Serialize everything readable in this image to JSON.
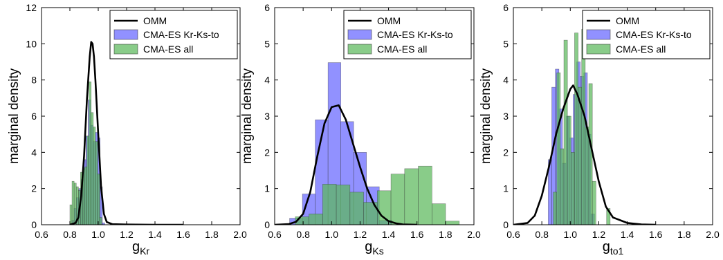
{
  "colors": {
    "omm": "#000000",
    "blue": "#6666ff",
    "green": "#5cb85c",
    "overlap_hint": "#2f7a7a"
  },
  "chart_data": [
    {
      "type": "histogram",
      "xlabel_main": "g",
      "xlabel_sub": "Kr",
      "ylabel": "marginal density",
      "xlim": [
        0.6,
        2.0
      ],
      "ylim": [
        0,
        12
      ],
      "xticks": [
        "0.6",
        "0.8",
        "1.0",
        "1.2",
        "1.4",
        "1.6",
        "1.8",
        "2.0"
      ],
      "yticks": [
        "0",
        "2",
        "4",
        "6",
        "8",
        "10",
        "12"
      ],
      "legend": {
        "position": "top-right",
        "omm": "OMM",
        "blue": "CMA-ES Kr-Ks-to",
        "green": "CMA-ES all"
      },
      "omm_curve": {
        "x": [
          0.8,
          0.84,
          0.86,
          0.88,
          0.9,
          0.92,
          0.94,
          0.95,
          0.96,
          0.97,
          0.98,
          1.0,
          1.02,
          1.04,
          1.06,
          1.1,
          1.2,
          1.4,
          1.6
        ],
        "y": [
          0,
          0.1,
          0.4,
          1.6,
          3.8,
          6.9,
          9.3,
          10.1,
          10.0,
          9.3,
          8.0,
          5.0,
          2.1,
          0.6,
          0.15,
          0.03,
          0.01,
          0,
          0
        ]
      },
      "hist_blue": {
        "edges": [
          0.813,
          0.829,
          0.846,
          0.863,
          0.879,
          0.896,
          0.913,
          0.929,
          0.946,
          0.963,
          0.979,
          0.996,
          1.013,
          1.029,
          1.046
        ],
        "heights": [
          0.25,
          0.9,
          1.5,
          2.0,
          2.5,
          3.6,
          4.9,
          6.9,
          5.5,
          4.6,
          5.1,
          4.8,
          2.1,
          0.1
        ]
      },
      "hist_green": {
        "edges": [
          0.8,
          0.815,
          0.83,
          0.845,
          0.86,
          0.875,
          0.89,
          0.905,
          0.92,
          0.935,
          0.95,
          0.965,
          0.98,
          0.995,
          1.01,
          1.025
        ],
        "heights": [
          1.1,
          2.4,
          2.3,
          2.1,
          1.9,
          2.9,
          3.1,
          3.2,
          4.9,
          7.9,
          6.2,
          5.4,
          4.6,
          2.8,
          0.4
        ]
      }
    },
    {
      "type": "histogram",
      "xlabel_main": "g",
      "xlabel_sub": "Ks",
      "ylabel": "marginal density",
      "xlim": [
        0.6,
        2.0
      ],
      "ylim": [
        0,
        6
      ],
      "xticks": [
        "0.6",
        "0.8",
        "1.0",
        "1.2",
        "1.4",
        "1.6",
        "1.8",
        "2.0"
      ],
      "yticks": [
        "0",
        "1",
        "2",
        "3",
        "4",
        "5",
        "6"
      ],
      "legend": {
        "position": "top-right",
        "omm": "OMM",
        "blue": "CMA-ES Kr-Ks-to",
        "green": "CMA-ES all"
      },
      "omm_curve": {
        "x": [
          0.6,
          0.7,
          0.75,
          0.8,
          0.85,
          0.9,
          0.95,
          1.0,
          1.05,
          1.1,
          1.15,
          1.2,
          1.25,
          1.3,
          1.35,
          1.4,
          1.45,
          1.5,
          1.6
        ],
        "y": [
          0,
          0.02,
          0.08,
          0.3,
          0.9,
          1.9,
          2.8,
          3.25,
          3.3,
          2.9,
          2.25,
          1.6,
          1.0,
          0.55,
          0.25,
          0.1,
          0.04,
          0.01,
          0
        ]
      },
      "hist_blue": {
        "edges": [
          0.705,
          0.795,
          0.885,
          0.975,
          1.065,
          1.155,
          1.245,
          1.335,
          1.425
        ],
        "heights": [
          0.18,
          0.85,
          2.9,
          4.48,
          2.85,
          2.0,
          1.05,
          0.12
        ]
      },
      "hist_green": {
        "edges": [
          0.745,
          0.841,
          0.937,
          1.033,
          1.129,
          1.225,
          1.321,
          1.417,
          1.513,
          1.609,
          1.705,
          1.801,
          1.897
        ],
        "heights": [
          0.22,
          0.3,
          1.12,
          1.1,
          0.9,
          0.62,
          0.94,
          1.4,
          1.55,
          1.62,
          0.58,
          0.1
        ]
      }
    },
    {
      "type": "histogram",
      "xlabel_main": "g",
      "xlabel_sub": "to1",
      "ylabel": "marginal density",
      "xlim": [
        0.6,
        2.0
      ],
      "ylim": [
        0,
        6
      ],
      "xticks": [
        "0.6",
        "0.8",
        "1.0",
        "1.2",
        "1.4",
        "1.6",
        "1.8",
        "2.0"
      ],
      "yticks": [
        "0",
        "1",
        "2",
        "3",
        "4",
        "5",
        "6"
      ],
      "legend": {
        "position": "top-right",
        "omm": "OMM",
        "blue": "CMA-ES Kr-Ks-to",
        "green": "CMA-ES all"
      },
      "omm_curve": {
        "x": [
          0.6,
          0.7,
          0.75,
          0.8,
          0.85,
          0.9,
          0.95,
          1.0,
          1.02,
          1.05,
          1.1,
          1.15,
          1.2,
          1.25,
          1.3,
          1.4,
          1.5,
          1.6
        ],
        "y": [
          0,
          0.05,
          0.25,
          0.8,
          1.6,
          2.5,
          3.2,
          3.75,
          3.85,
          3.6,
          3.0,
          2.1,
          1.2,
          0.5,
          0.2,
          0.05,
          0.01,
          0
        ]
      },
      "hist_blue": {
        "edges": [
          0.845,
          0.87,
          0.895,
          0.92,
          0.945,
          0.97,
          0.995,
          1.02,
          1.045,
          1.07,
          1.095,
          1.12,
          1.145,
          1.17
        ],
        "heights": [
          1.8,
          3.8,
          4.3,
          3.2,
          1.7,
          3.0,
          2.4,
          3.6,
          4.5,
          4.1,
          4.2,
          2.5,
          0.3
        ]
      },
      "hist_green": {
        "edges": [
          0.88,
          0.905,
          0.93,
          0.955,
          0.98,
          1.005,
          1.03,
          1.055,
          1.08,
          1.105,
          1.13,
          1.155,
          1.18,
          1.205,
          1.23,
          1.255,
          1.28
        ],
        "heights": [
          0.9,
          4.2,
          2.1,
          5.1,
          3.0,
          2.0,
          5.3,
          3.8,
          5.4,
          2.7,
          3.9,
          1.2,
          0,
          0,
          0,
          0.45
        ]
      }
    }
  ]
}
